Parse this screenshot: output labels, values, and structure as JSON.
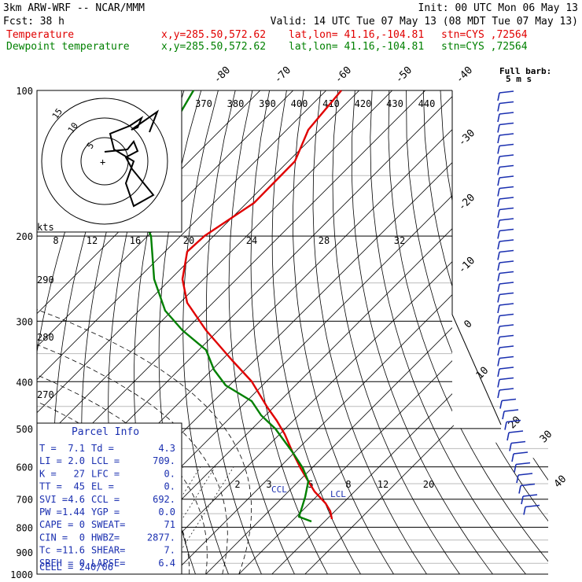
{
  "header": {
    "model": "3km ARW-WRF -- NCAR/MMM",
    "init": "Init: 00 UTC Mon 06 May 13",
    "fcst_label": "Fcst:",
    "fcst_value": "38 h",
    "valid": "Valid: 14 UTC Tue 07 May 13 (08 MDT Tue 07 May 13)",
    "temp_label": "Temperature",
    "dew_label": "Dewpoint temperature",
    "xy": "x,y=285.50,572.62",
    "latlon": "lat,lon= 41.16,-104.81",
    "stn": "stn=CYS ,72564",
    "barb_title": "Full barb:",
    "barb_unit": "5 m s",
    "temp_color": "#e00000",
    "dew_color": "#008000",
    "barb_color": "#1a2fb0"
  },
  "chart_data": {
    "type": "line",
    "title": "",
    "xlabel": "",
    "ylabel": "",
    "pressure_levels": [
      "100",
      "200",
      "300",
      "400",
      "500",
      "600",
      "700",
      "800",
      "900",
      "1000"
    ],
    "top_temp_ticks": [
      "-80",
      "-70",
      "-60",
      "-50",
      "-40"
    ],
    "right_temp_ticks": [
      "-30",
      "-20",
      "-10",
      "0",
      "10",
      "20",
      "30",
      "40"
    ],
    "theta_labels": [
      "370",
      "380",
      "390",
      "400",
      "410",
      "420",
      "430",
      "440"
    ],
    "mixratio_labels": [
      "8",
      "12",
      "16",
      "20",
      "24",
      "28",
      "32"
    ],
    "mixratio_low_labels": [
      "2",
      "3",
      "5",
      "8",
      "12",
      "20"
    ],
    "left_theta_labels": [
      "290",
      "280",
      "270"
    ],
    "ccl_label": "CCL",
    "lcl_label": "LCL",
    "hodo_label": "kts",
    "hodo_rings": [
      "5",
      "10",
      "15"
    ],
    "series": [
      {
        "name": "Temperature",
        "pressure": [
          100,
          150,
          200,
          250,
          300,
          400,
          500,
          600,
          700,
          750,
          790
        ],
        "values": [
          -52,
          -58,
          -56,
          -48,
          -38,
          -24,
          -11,
          -3,
          4,
          6,
          7
        ]
      },
      {
        "name": "Dewpoint temperature",
        "pressure": [
          100,
          150,
          200,
          250,
          300,
          400,
          500,
          600,
          700,
          750,
          790
        ],
        "values": [
          -68,
          -74,
          -72,
          -64,
          -52,
          -38,
          -15,
          -6,
          2,
          3,
          4
        ]
      }
    ]
  },
  "parcel_info": {
    "title": "Parcel Info",
    "rows": [
      [
        "T  =",
        "7.1",
        "Td =",
        "4.3"
      ],
      [
        "LI =",
        "2.0",
        "LCL =",
        "709."
      ],
      [
        "K  =",
        "27",
        "LFC =",
        "0."
      ],
      [
        "TT =",
        "45",
        "EL  =",
        "0."
      ],
      [
        "SVI =",
        "4.6",
        "CCL =",
        "692."
      ],
      [
        "PW =",
        "1.44",
        "YGP =",
        "0.0"
      ],
      [
        "CAPE =",
        "0",
        "SWEAT=",
        "71"
      ],
      [
        "CIN =",
        "0",
        "HWBZ=",
        "2877."
      ],
      [
        "Tc =",
        "11.6",
        "SHEAR=",
        "7."
      ],
      [
        "SREH =",
        "0",
        "LAPSE=",
        "6.4"
      ]
    ],
    "cell": "CELL = 240/06"
  }
}
